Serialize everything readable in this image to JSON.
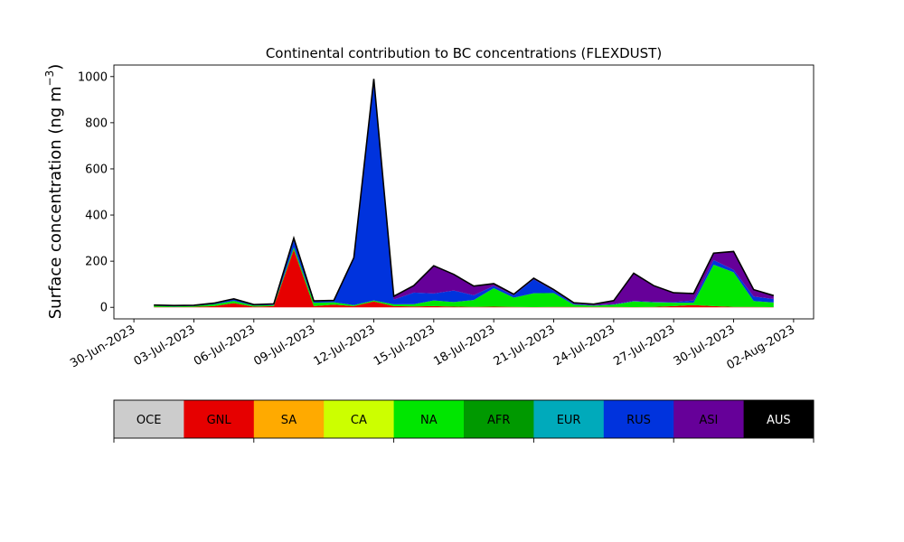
{
  "chart_data": {
    "type": "area",
    "stacked": true,
    "title": "Continental contribution to BC concentrations (FLEXDUST)",
    "xlabel": "",
    "ylabel": "Surface concentration (ng m",
    "ylabel_superscript": "−3",
    "ylabel_close": ")",
    "ylim": [
      -50,
      1050
    ],
    "xlim": [
      "2023-06-29",
      "2023-08-03"
    ],
    "y_ticks": [
      0,
      200,
      400,
      600,
      800,
      1000
    ],
    "x_ticks": [
      "2023-06-30",
      "2023-07-03",
      "2023-07-06",
      "2023-07-09",
      "2023-07-12",
      "2023-07-15",
      "2023-07-18",
      "2023-07-21",
      "2023-07-24",
      "2023-07-27",
      "2023-07-30",
      "2023-08-02"
    ],
    "x_tick_labels": [
      "30-Jun-2023",
      "03-Jul-2023",
      "06-Jul-2023",
      "09-Jul-2023",
      "12-Jul-2023",
      "15-Jul-2023",
      "18-Jul-2023",
      "21-Jul-2023",
      "24-Jul-2023",
      "27-Jul-2023",
      "30-Jul-2023",
      "02-Aug-2023"
    ],
    "grid": false,
    "legend": "colorbar below plot",
    "total_line_color": "#000000",
    "dates": [
      "2023-07-01",
      "2023-07-02",
      "2023-07-03",
      "2023-07-04",
      "2023-07-05",
      "2023-07-06",
      "2023-07-07",
      "2023-07-08",
      "2023-07-09",
      "2023-07-10",
      "2023-07-11",
      "2023-07-12",
      "2023-07-13",
      "2023-07-14",
      "2023-07-15",
      "2023-07-16",
      "2023-07-17",
      "2023-07-18",
      "2023-07-19",
      "2023-07-20",
      "2023-07-21",
      "2023-07-22",
      "2023-07-23",
      "2023-07-24",
      "2023-07-25",
      "2023-07-26",
      "2023-07-27",
      "2023-07-28",
      "2023-07-29",
      "2023-07-30",
      "2023-07-31",
      "2023-08-01"
    ],
    "series": [
      {
        "name": "OCE",
        "color": "#cccccc",
        "values": [
          0,
          0,
          0,
          0,
          0,
          0,
          0,
          0,
          0,
          0,
          0,
          0,
          0,
          0,
          0,
          0,
          0,
          0,
          0,
          0,
          0,
          0,
          0,
          0,
          0,
          0,
          0,
          0,
          0,
          0,
          0,
          0
        ]
      },
      {
        "name": "GNL",
        "color": "#e60000",
        "values": [
          2,
          1,
          2,
          5,
          18,
          3,
          5,
          250,
          5,
          12,
          5,
          25,
          5,
          4,
          5,
          3,
          2,
          3,
          2,
          1,
          2,
          2,
          2,
          2,
          1,
          2,
          5,
          10,
          5,
          2,
          2,
          1
        ]
      },
      {
        "name": "SA",
        "color": "#ffaa00",
        "values": [
          0,
          0,
          0,
          0,
          0,
          0,
          0,
          0,
          0,
          0,
          0,
          0,
          0,
          0,
          0,
          0,
          0,
          0,
          0,
          0,
          0,
          0,
          0,
          0,
          0,
          0,
          0,
          0,
          0,
          0,
          0,
          0
        ]
      },
      {
        "name": "CA",
        "color": "#ccff00",
        "values": [
          0,
          0,
          0,
          0,
          0,
          0,
          0,
          0,
          0,
          0,
          0,
          0,
          0,
          0,
          0,
          0,
          0,
          0,
          0,
          0,
          0,
          0,
          0,
          0,
          0,
          0,
          0,
          0,
          0,
          0,
          0,
          0
        ]
      },
      {
        "name": "NA",
        "color": "#00e600",
        "values": [
          5,
          3,
          4,
          8,
          10,
          5,
          5,
          10,
          15,
          10,
          5,
          5,
          8,
          10,
          25,
          20,
          30,
          80,
          40,
          60,
          60,
          10,
          5,
          10,
          25,
          20,
          15,
          10,
          180,
          150,
          25,
          20
        ]
      },
      {
        "name": "AFR",
        "color": "#009900",
        "values": [
          0,
          0,
          0,
          0,
          0,
          0,
          0,
          0,
          0,
          0,
          0,
          0,
          0,
          0,
          0,
          0,
          0,
          0,
          0,
          0,
          0,
          0,
          0,
          0,
          0,
          0,
          0,
          0,
          0,
          0,
          0,
          0
        ]
      },
      {
        "name": "EUR",
        "color": "#00aabb",
        "values": [
          0,
          0,
          0,
          0,
          0,
          0,
          0,
          0,
          0,
          0,
          0,
          0,
          0,
          0,
          0,
          0,
          0,
          0,
          0,
          0,
          0,
          0,
          0,
          0,
          0,
          0,
          0,
          0,
          0,
          0,
          0,
          0
        ]
      },
      {
        "name": "RUS",
        "color": "#0033dd",
        "values": [
          2,
          3,
          2,
          3,
          6,
          2,
          2,
          30,
          5,
          5,
          200,
          950,
          20,
          50,
          30,
          50,
          20,
          10,
          10,
          60,
          10,
          3,
          2,
          2,
          2,
          2,
          3,
          10,
          20,
          10,
          20,
          15
        ]
      },
      {
        "name": "ASI",
        "color": "#660099",
        "values": [
          1,
          1,
          1,
          2,
          3,
          2,
          3,
          10,
          3,
          3,
          5,
          10,
          15,
          30,
          120,
          70,
          40,
          10,
          5,
          5,
          5,
          5,
          5,
          15,
          120,
          70,
          40,
          30,
          30,
          80,
          30,
          15
        ]
      },
      {
        "name": "AUS",
        "color": "#000000",
        "values": [
          0,
          0,
          0,
          0,
          0,
          0,
          0,
          0,
          0,
          0,
          0,
          0,
          0,
          0,
          0,
          0,
          0,
          0,
          0,
          0,
          0,
          0,
          0,
          0,
          0,
          0,
          0,
          0,
          0,
          0,
          0,
          0
        ]
      }
    ]
  }
}
